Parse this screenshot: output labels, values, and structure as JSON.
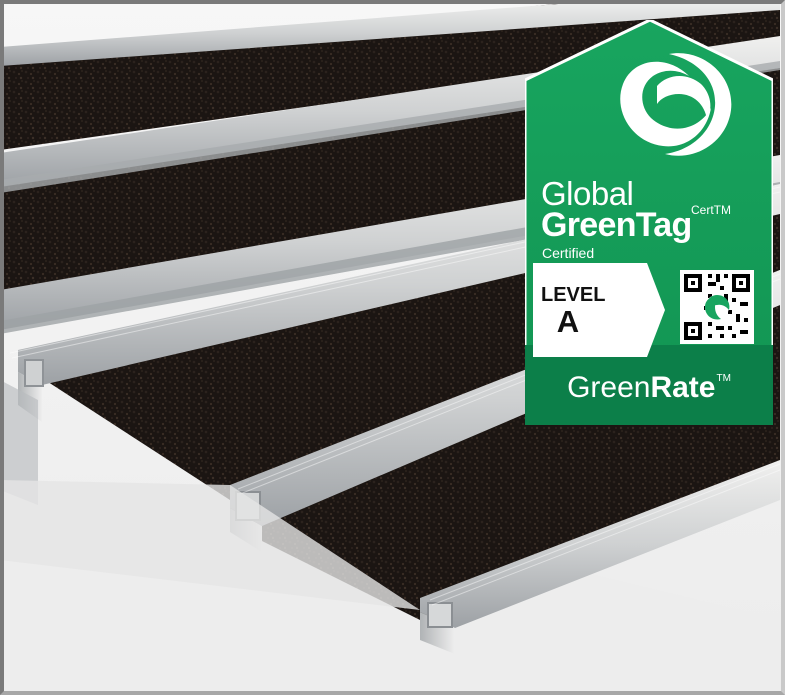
{
  "scene": {
    "subject": "entrance-matting-rails",
    "colors": {
      "background": "#f6f6f6",
      "rail": "#d9d9d8",
      "rail_shadow": "#8d8f92",
      "mat_dark": "#1c1613",
      "badge_green": "#169b5a",
      "badge_green_dark": "#0c7f49",
      "badge_white": "#ffffff"
    }
  },
  "badge": {
    "line1": "Global",
    "brand_bold": "GreenTag",
    "cert_superscript": "CertTM",
    "line3": "Certified",
    "level_label": "LEVEL",
    "level_value": "A",
    "footer_light": "Green",
    "footer_bold": "Rate",
    "footer_tm": "TM",
    "logo_icon": "swirl-logo-icon",
    "qr_icon": "qr-code-icon"
  }
}
